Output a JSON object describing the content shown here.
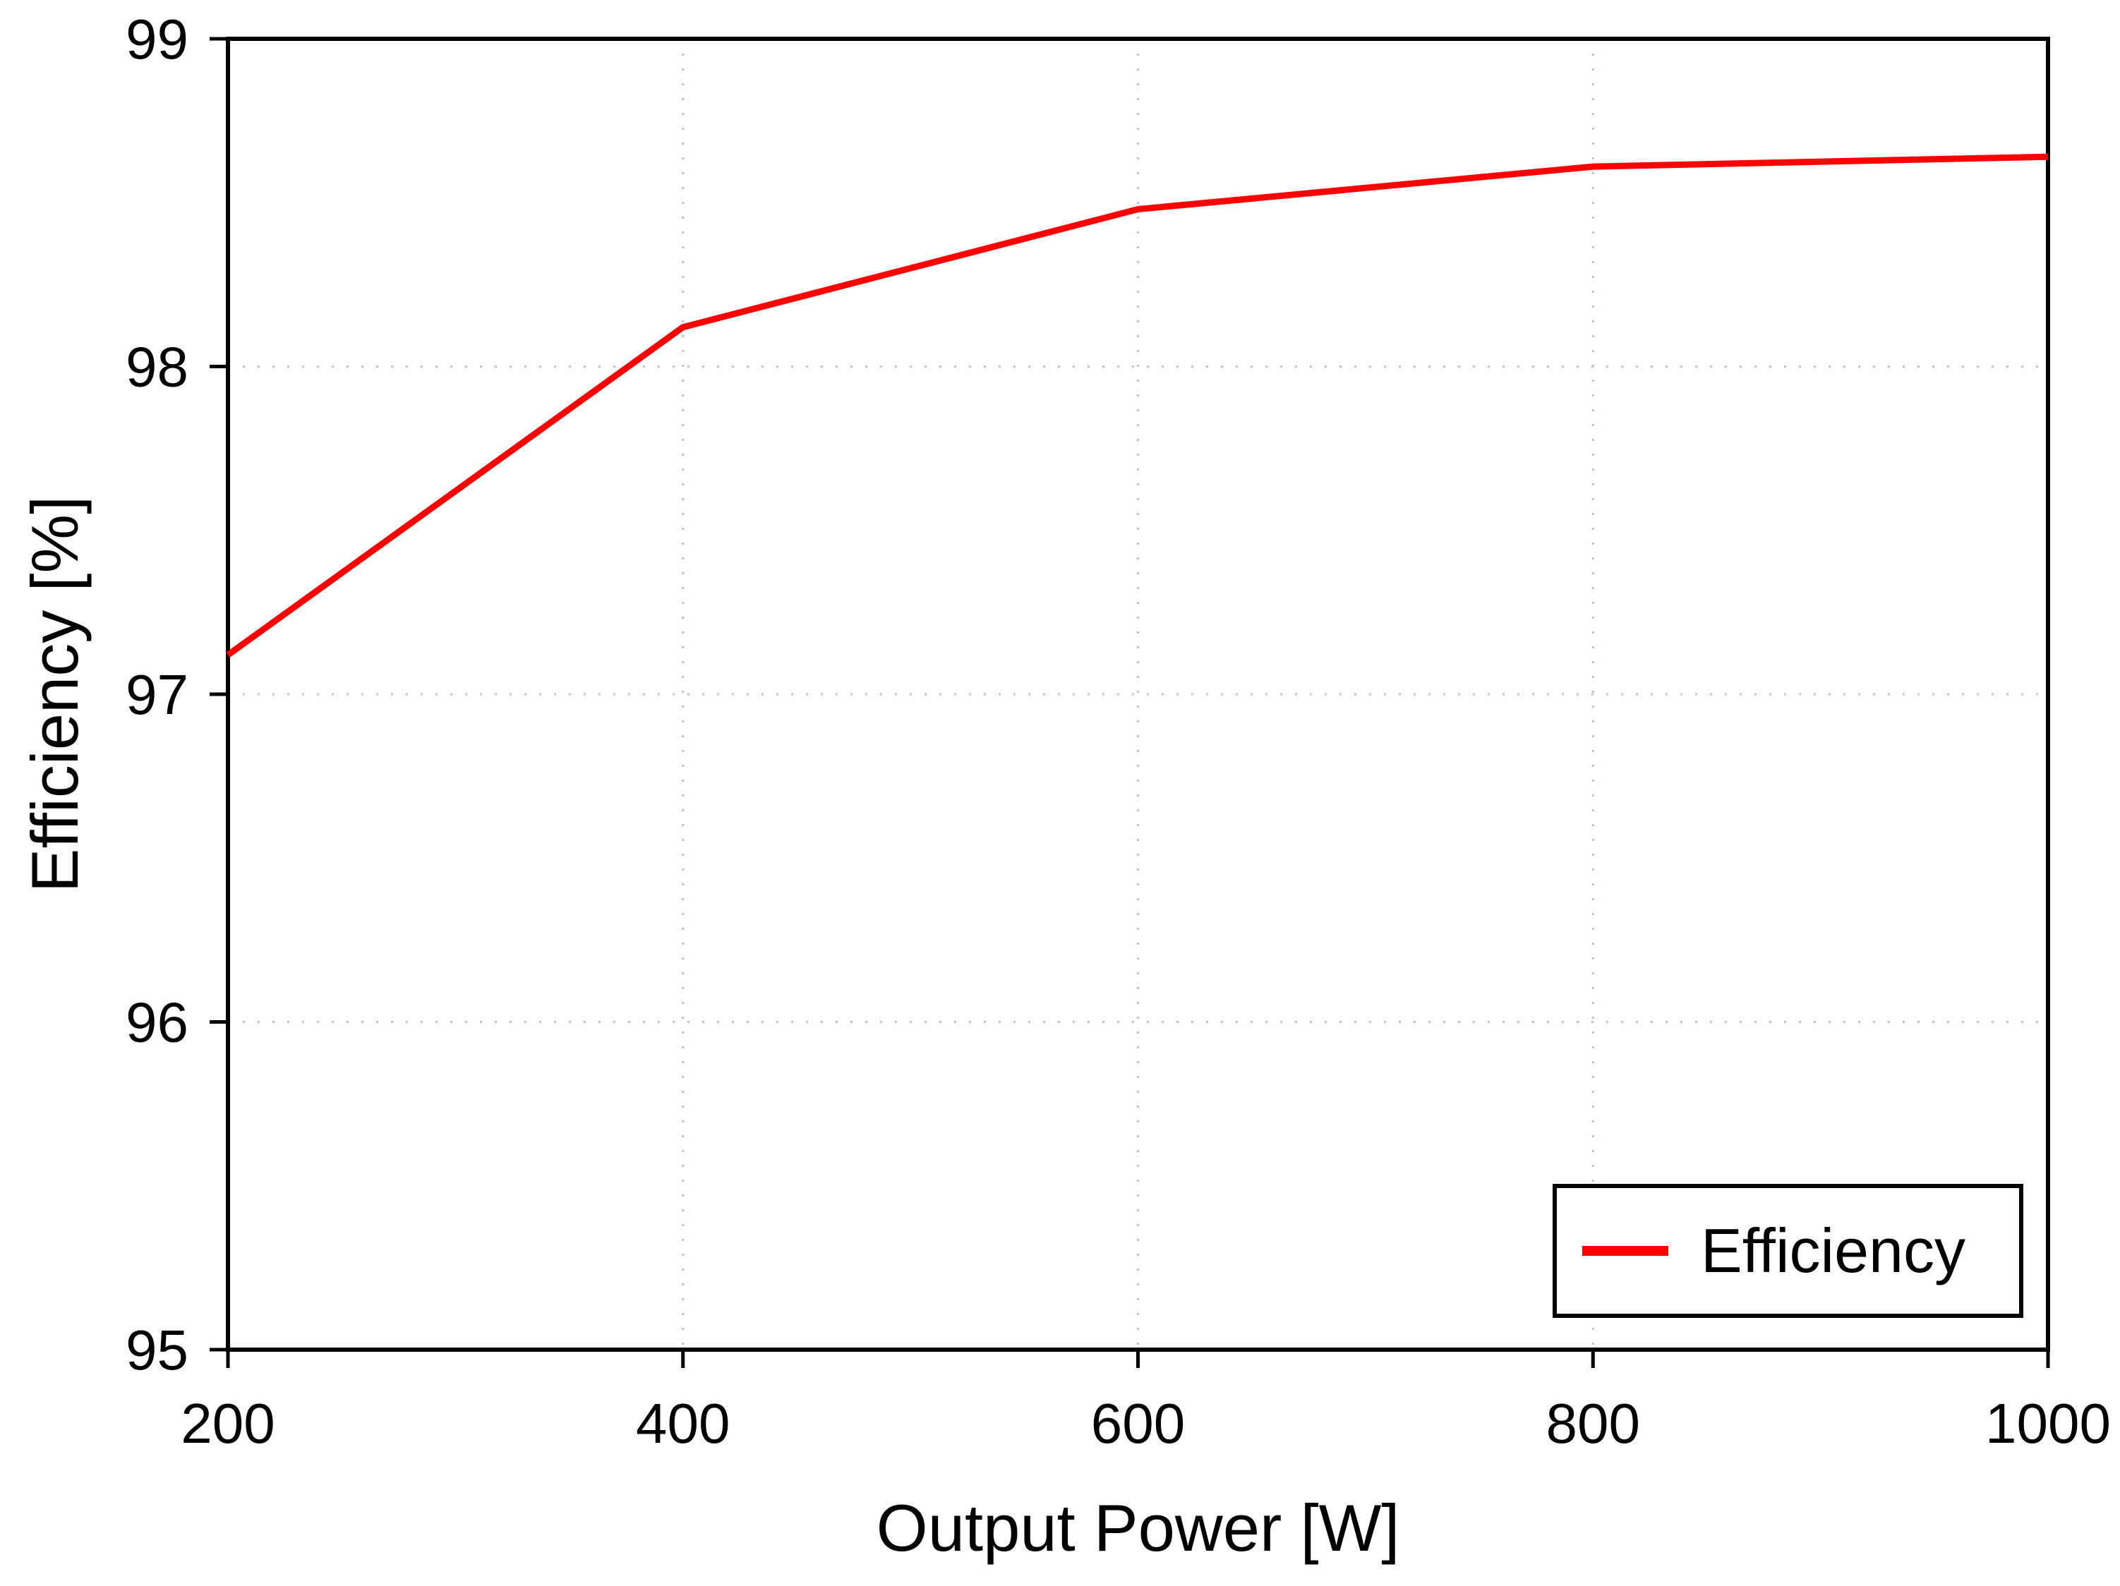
{
  "chart_data": {
    "type": "line",
    "title": "",
    "xlabel": "Output Power [W]",
    "ylabel": "Efficiency [%]",
    "x": [
      200,
      400,
      600,
      800,
      1000
    ],
    "series": [
      {
        "name": "Efficiency",
        "color": "#ff0000",
        "values": [
          97.12,
          98.12,
          98.48,
          98.61,
          98.64
        ]
      }
    ],
    "xlim": [
      200,
      1000
    ],
    "ylim": [
      95,
      99
    ],
    "x_ticks": [
      200,
      400,
      600,
      800,
      1000
    ],
    "x_tick_labels": [
      "200",
      "400",
      "600",
      "800",
      "1000"
    ],
    "y_ticks": [
      95,
      96,
      97,
      98,
      99
    ],
    "y_tick_labels": [
      "95",
      "96",
      "97",
      "98",
      "99"
    ],
    "grid": "dotted gridlines at interior major ticks, horizontal and vertical",
    "legend_position": "lower-right",
    "legend_label": "Efficiency",
    "colors": {
      "line": "#ff0000",
      "grid": "#b6c4d3",
      "axis": "#000000",
      "text": "#000000",
      "background": "#ffffff"
    }
  }
}
